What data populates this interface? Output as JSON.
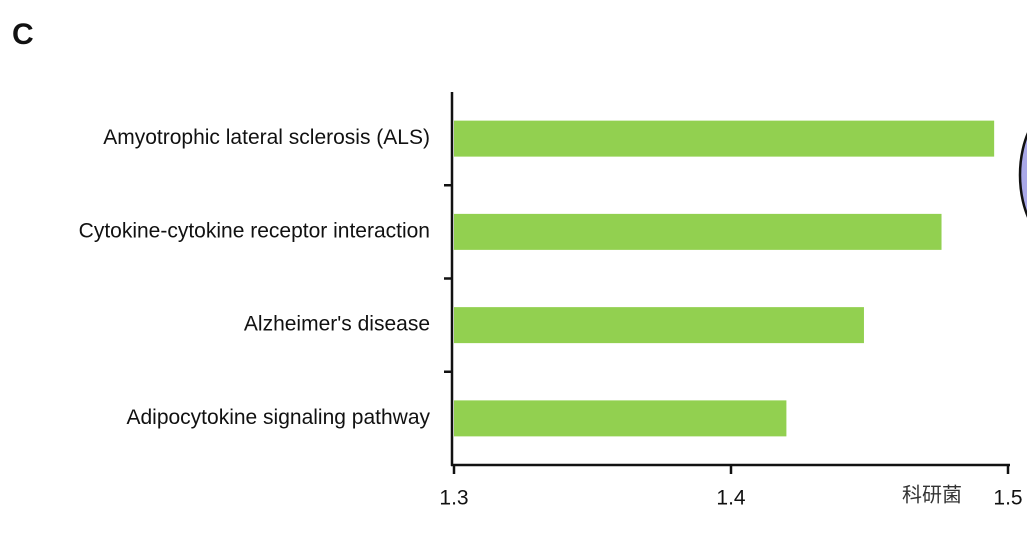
{
  "panel_label": "C",
  "watermark": "科研菌",
  "chart_data": {
    "type": "bar",
    "orientation": "horizontal",
    "categories": [
      "Amyotrophic lateral sclerosis (ALS)",
      "Cytokine-cytokine receptor interaction",
      "Alzheimer's disease",
      "Adipocytokine signaling pathway"
    ],
    "values": [
      1.495,
      1.476,
      1.448,
      1.42
    ],
    "color": "#92d050",
    "xlim": [
      1.3,
      1.5
    ],
    "xticks": [
      1.3,
      1.4,
      1.5
    ],
    "grid": false
  }
}
